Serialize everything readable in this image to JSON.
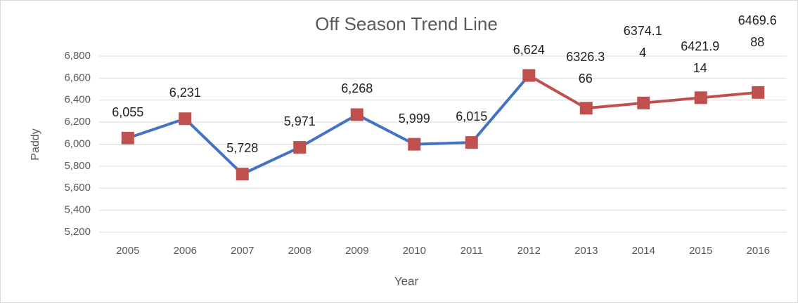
{
  "chart_data": {
    "type": "line",
    "title": "Off Season Trend Line",
    "x_label": "Year",
    "y_label": "Paddy",
    "categories": [
      "2005",
      "2006",
      "2007",
      "2008",
      "2009",
      "2010",
      "2011",
      "2012",
      "2013",
      "2014",
      "2015",
      "2016"
    ],
    "series": [
      {
        "color": "#4472c4",
        "values": [
          6055,
          6231,
          5728,
          5971,
          6268,
          5999,
          6015,
          6624,
          null,
          null,
          null,
          null
        ],
        "value_labels": [
          "6,055",
          "6,231",
          "5,728",
          "5,971",
          "6,268",
          "5,999",
          "6,015",
          "6,624",
          null,
          null,
          null,
          null
        ]
      },
      {
        "color": "#c0504d",
        "values": [
          null,
          null,
          null,
          null,
          null,
          null,
          null,
          6624,
          6326.366,
          6374.14,
          6421.914,
          6469.688
        ],
        "value_labels": [
          null,
          null,
          null,
          null,
          null,
          null,
          null,
          null,
          "6326.366",
          "6374.14",
          "6421.914",
          "6469.688"
        ]
      }
    ],
    "marker_color": "#c0504d",
    "ylim": [
      5200,
      6800
    ],
    "yticks": [
      {
        "value": 5200,
        "label": "5,200"
      },
      {
        "value": 5400,
        "label": "5,400"
      },
      {
        "value": 5600,
        "label": "5,600"
      },
      {
        "value": 5800,
        "label": "5,800"
      },
      {
        "value": 6000,
        "label": "6,000"
      },
      {
        "value": 6200,
        "label": "6,200"
      },
      {
        "value": 6400,
        "label": "6,400"
      },
      {
        "value": 6600,
        "label": "6,600"
      },
      {
        "value": 6800,
        "label": "6,800"
      }
    ],
    "grid": true
  }
}
